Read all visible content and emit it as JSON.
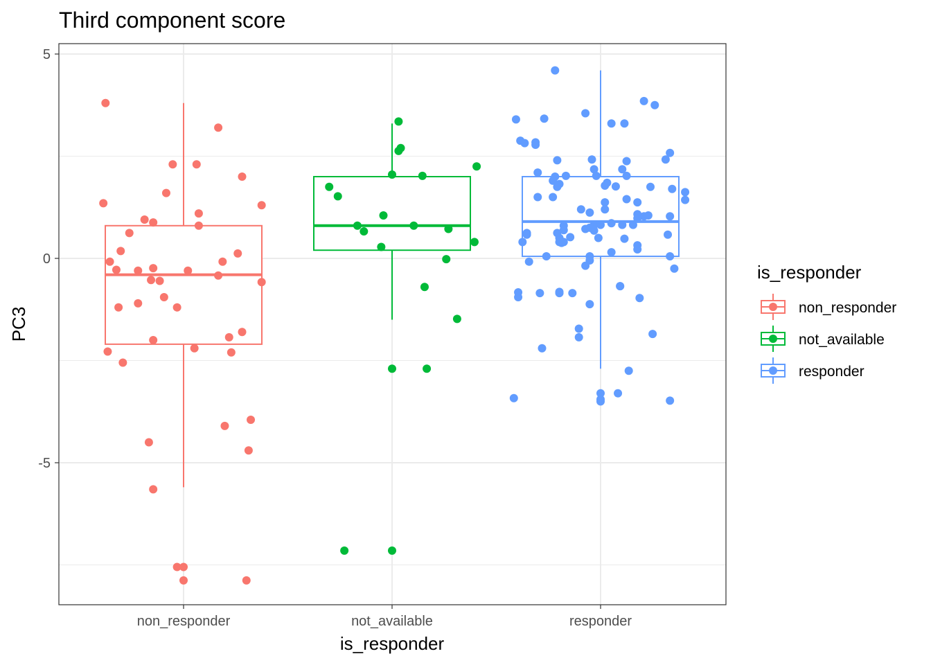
{
  "chart_data": {
    "type": "box+jitter",
    "title": "Third component score",
    "xlabel": "is_responder",
    "ylabel": "PC3",
    "categories": [
      "non_responder",
      "not_available",
      "responder"
    ],
    "ylim": [
      -8.5,
      5.0
    ],
    "yticks": [
      5,
      0,
      -5
    ],
    "ytick_labels": [
      "5",
      "0",
      "-5"
    ],
    "grid": true,
    "legend": {
      "title": "is_responder",
      "position": "right",
      "entries": [
        "non_responder",
        "not_available",
        "responder"
      ]
    },
    "colors": {
      "non_responder": "#F8766D",
      "not_available": "#00BA38",
      "responder": "#619CFF"
    },
    "boxes": [
      {
        "group": "non_responder",
        "min": -5.6,
        "q1": -2.1,
        "median": -0.4,
        "q3": 0.8,
        "max": 3.8
      },
      {
        "group": "not_available",
        "min": -1.5,
        "q1": 0.2,
        "median": 0.8,
        "q3": 2.0,
        "max": 3.3
      },
      {
        "group": "responder",
        "min": -2.7,
        "q1": 0.05,
        "median": 0.9,
        "q3": 2.0,
        "max": 4.6
      }
    ],
    "series": [
      {
        "name": "non_responder",
        "points": [
          {
            "dx": -0.36,
            "y": 3.8
          },
          {
            "dx": 0.16,
            "y": 3.2
          },
          {
            "dx": -0.05,
            "y": 2.3
          },
          {
            "dx": 0.06,
            "y": 2.3
          },
          {
            "dx": 0.27,
            "y": 2.0
          },
          {
            "dx": -0.08,
            "y": 1.6
          },
          {
            "dx": -0.37,
            "y": 1.35
          },
          {
            "dx": 0.36,
            "y": 1.3
          },
          {
            "dx": 0.07,
            "y": 1.1
          },
          {
            "dx": -0.18,
            "y": 0.95
          },
          {
            "dx": -0.14,
            "y": 0.88
          },
          {
            "dx": 0.07,
            "y": 0.8
          },
          {
            "dx": -0.25,
            "y": 0.62
          },
          {
            "dx": -0.29,
            "y": 0.18
          },
          {
            "dx": 0.25,
            "y": 0.12
          },
          {
            "dx": -0.34,
            "y": -0.08
          },
          {
            "dx": 0.18,
            "y": -0.08
          },
          {
            "dx": -0.31,
            "y": -0.28
          },
          {
            "dx": -0.21,
            "y": -0.3
          },
          {
            "dx": -0.14,
            "y": -0.24
          },
          {
            "dx": 0.02,
            "y": -0.3
          },
          {
            "dx": 0.16,
            "y": -0.42
          },
          {
            "dx": -0.15,
            "y": -0.53
          },
          {
            "dx": -0.11,
            "y": -0.55
          },
          {
            "dx": 0.36,
            "y": -0.58
          },
          {
            "dx": -0.09,
            "y": -0.95
          },
          {
            "dx": -0.21,
            "y": -1.1
          },
          {
            "dx": -0.3,
            "y": -1.2
          },
          {
            "dx": -0.03,
            "y": -1.2
          },
          {
            "dx": 0.27,
            "y": -1.8
          },
          {
            "dx": 0.21,
            "y": -1.93
          },
          {
            "dx": -0.14,
            "y": -2.0
          },
          {
            "dx": 0.05,
            "y": -2.2
          },
          {
            "dx": -0.35,
            "y": -2.28
          },
          {
            "dx": 0.22,
            "y": -2.3
          },
          {
            "dx": -0.28,
            "y": -2.55
          },
          {
            "dx": 0.31,
            "y": -3.95
          },
          {
            "dx": 0.19,
            "y": -4.1
          },
          {
            "dx": -0.16,
            "y": -4.5
          },
          {
            "dx": 0.3,
            "y": -4.7
          },
          {
            "dx": -0.14,
            "y": -5.65
          },
          {
            "dx": -0.03,
            "y": -7.55
          },
          {
            "dx": 0.0,
            "y": -7.55
          },
          {
            "dx": 0.0,
            "y": -7.88
          },
          {
            "dx": 0.29,
            "y": -7.88
          }
        ]
      },
      {
        "name": "not_available",
        "points": [
          {
            "dx": 0.03,
            "y": 3.35
          },
          {
            "dx": 0.04,
            "y": 2.7
          },
          {
            "dx": 0.03,
            "y": 2.63
          },
          {
            "dx": 0.39,
            "y": 2.25
          },
          {
            "dx": 0.0,
            "y": 2.05
          },
          {
            "dx": 0.14,
            "y": 2.02
          },
          {
            "dx": -0.29,
            "y": 1.75
          },
          {
            "dx": -0.25,
            "y": 1.52
          },
          {
            "dx": -0.04,
            "y": 1.05
          },
          {
            "dx": -0.16,
            "y": 0.8
          },
          {
            "dx": 0.1,
            "y": 0.8
          },
          {
            "dx": -0.13,
            "y": 0.66
          },
          {
            "dx": 0.26,
            "y": 0.72
          },
          {
            "dx": 0.38,
            "y": 0.4
          },
          {
            "dx": -0.05,
            "y": 0.28
          },
          {
            "dx": 0.25,
            "y": -0.02
          },
          {
            "dx": 0.15,
            "y": -0.7
          },
          {
            "dx": 0.3,
            "y": -1.48
          },
          {
            "dx": 0.0,
            "y": -2.7
          },
          {
            "dx": 0.16,
            "y": -2.7
          },
          {
            "dx": -0.22,
            "y": -7.15
          },
          {
            "dx": 0.0,
            "y": -7.15
          }
        ]
      },
      {
        "name": "responder",
        "points": [
          {
            "dx": -0.21,
            "y": 4.6
          },
          {
            "dx": 0.2,
            "y": 3.85
          },
          {
            "dx": 0.25,
            "y": 3.75
          },
          {
            "dx": -0.07,
            "y": 3.55
          },
          {
            "dx": -0.39,
            "y": 3.4
          },
          {
            "dx": -0.26,
            "y": 3.42
          },
          {
            "dx": 0.05,
            "y": 3.3
          },
          {
            "dx": 0.11,
            "y": 3.3
          },
          {
            "dx": -0.37,
            "y": 2.88
          },
          {
            "dx": -0.35,
            "y": 2.82
          },
          {
            "dx": -0.3,
            "y": 2.84
          },
          {
            "dx": -0.3,
            "y": 2.78
          },
          {
            "dx": 0.32,
            "y": 2.58
          },
          {
            "dx": -0.2,
            "y": 2.4
          },
          {
            "dx": -0.04,
            "y": 2.42
          },
          {
            "dx": 0.12,
            "y": 2.38
          },
          {
            "dx": 0.3,
            "y": 2.42
          },
          {
            "dx": -0.03,
            "y": 2.18
          },
          {
            "dx": 0.1,
            "y": 2.18
          },
          {
            "dx": -0.29,
            "y": 2.1
          },
          {
            "dx": -0.16,
            "y": 2.02
          },
          {
            "dx": -0.21,
            "y": 2.0
          },
          {
            "dx": -0.02,
            "y": 2.02
          },
          {
            "dx": 0.12,
            "y": 2.02
          },
          {
            "dx": -0.22,
            "y": 1.9
          },
          {
            "dx": 0.03,
            "y": 1.85
          },
          {
            "dx": -0.19,
            "y": 1.82
          },
          {
            "dx": 0.02,
            "y": 1.78
          },
          {
            "dx": 0.07,
            "y": 1.76
          },
          {
            "dx": -0.2,
            "y": 1.75
          },
          {
            "dx": 0.23,
            "y": 1.75
          },
          {
            "dx": 0.33,
            "y": 1.7
          },
          {
            "dx": 0.39,
            "y": 1.62
          },
          {
            "dx": -0.29,
            "y": 1.5
          },
          {
            "dx": -0.22,
            "y": 1.5
          },
          {
            "dx": 0.12,
            "y": 1.45
          },
          {
            "dx": 0.39,
            "y": 1.43
          },
          {
            "dx": 0.02,
            "y": 1.37
          },
          {
            "dx": 0.17,
            "y": 1.37
          },
          {
            "dx": -0.09,
            "y": 1.2
          },
          {
            "dx": 0.02,
            "y": 1.2
          },
          {
            "dx": -0.05,
            "y": 1.12
          },
          {
            "dx": 0.17,
            "y": 1.08
          },
          {
            "dx": 0.2,
            "y": 1.03
          },
          {
            "dx": 0.22,
            "y": 1.05
          },
          {
            "dx": 0.32,
            "y": 1.03
          },
          {
            "dx": 0.17,
            "y": 0.98
          },
          {
            "dx": -0.03,
            "y": 0.82
          },
          {
            "dx": 0.0,
            "y": 0.82
          },
          {
            "dx": 0.05,
            "y": 0.86
          },
          {
            "dx": 0.1,
            "y": 0.82
          },
          {
            "dx": 0.15,
            "y": 0.82
          },
          {
            "dx": -0.17,
            "y": 0.8
          },
          {
            "dx": -0.05,
            "y": 0.75
          },
          {
            "dx": -0.07,
            "y": 0.72
          },
          {
            "dx": -0.17,
            "y": 0.69
          },
          {
            "dx": -0.03,
            "y": 0.68
          },
          {
            "dx": -0.2,
            "y": 0.62
          },
          {
            "dx": -0.34,
            "y": 0.62
          },
          {
            "dx": -0.34,
            "y": 0.58
          },
          {
            "dx": -0.14,
            "y": 0.52
          },
          {
            "dx": -0.19,
            "y": 0.5
          },
          {
            "dx": -0.01,
            "y": 0.5
          },
          {
            "dx": 0.31,
            "y": 0.58
          },
          {
            "dx": 0.11,
            "y": 0.48
          },
          {
            "dx": -0.36,
            "y": 0.4
          },
          {
            "dx": -0.19,
            "y": 0.4
          },
          {
            "dx": -0.17,
            "y": 0.4
          },
          {
            "dx": -0.18,
            "y": 0.38
          },
          {
            "dx": 0.17,
            "y": 0.32
          },
          {
            "dx": 0.17,
            "y": 0.22
          },
          {
            "dx": 0.05,
            "y": 0.15
          },
          {
            "dx": -0.25,
            "y": 0.05
          },
          {
            "dx": -0.05,
            "y": 0.05
          },
          {
            "dx": -0.05,
            "y": -0.05
          },
          {
            "dx": -0.33,
            "y": -0.08
          },
          {
            "dx": 0.32,
            "y": 0.05
          },
          {
            "dx": 0.34,
            "y": -0.25
          },
          {
            "dx": -0.07,
            "y": -0.18
          },
          {
            "dx": 0.09,
            "y": -0.68
          },
          {
            "dx": 0.09,
            "y": -0.68
          },
          {
            "dx": -0.38,
            "y": -0.83
          },
          {
            "dx": -0.28,
            "y": -0.85
          },
          {
            "dx": -0.19,
            "y": -0.85
          },
          {
            "dx": -0.13,
            "y": -0.85
          },
          {
            "dx": -0.19,
            "y": -0.82
          },
          {
            "dx": -0.38,
            "y": -0.95
          },
          {
            "dx": 0.18,
            "y": -0.97
          },
          {
            "dx": -0.05,
            "y": -1.12
          },
          {
            "dx": -0.1,
            "y": -1.72
          },
          {
            "dx": -0.1,
            "y": -1.93
          },
          {
            "dx": 0.24,
            "y": -1.85
          },
          {
            "dx": -0.27,
            "y": -2.2
          },
          {
            "dx": 0.13,
            "y": -2.75
          },
          {
            "dx": 0.08,
            "y": -3.3
          },
          {
            "dx": 0.0,
            "y": -3.3
          },
          {
            "dx": -0.4,
            "y": -3.42
          },
          {
            "dx": 0.0,
            "y": -3.45
          },
          {
            "dx": 0.0,
            "y": -3.5
          },
          {
            "dx": 0.32,
            "y": -3.48
          }
        ]
      }
    ]
  }
}
